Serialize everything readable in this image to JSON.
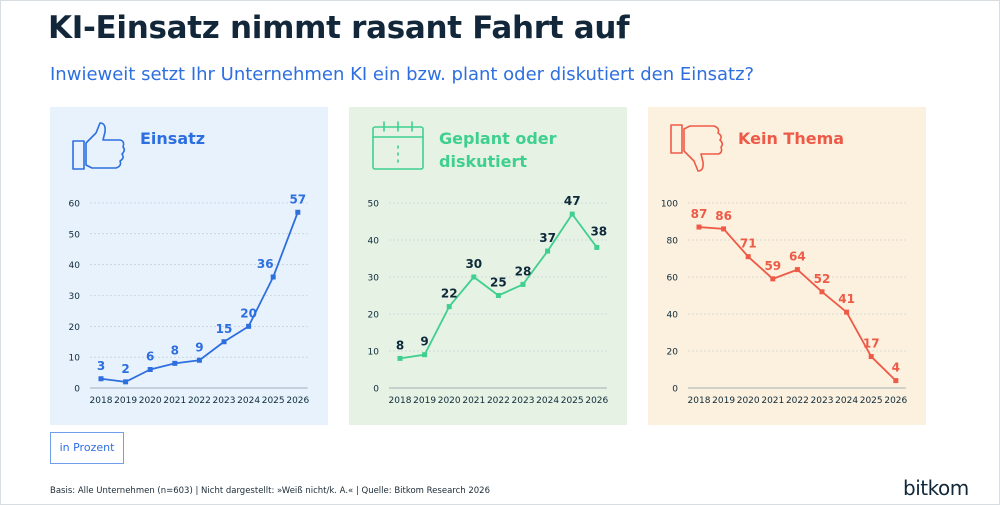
{
  "title": "KI-Einsatz nimmt rasant Fahrt auf",
  "subtitle": "Inwieweit setzt Ihr Unternehmen KI ein bzw. plant oder diskutiert den Einsatz?",
  "unit_label": "in Prozent",
  "footer": "Basis: Alle Unternehmen (n=603) | Nicht dargestellt: »Weiß nicht/k. A.« | Quelle: Bitkom Research 2026",
  "brand": "bitkom",
  "colors": {
    "blue": "#2e6fe0",
    "green": "#3fcf8f",
    "red": "#ee5a48",
    "axis": "#8a98a6",
    "label": "#0e2a3a"
  },
  "chart_data": [
    {
      "type": "line",
      "title_lines": [
        "Einsatz"
      ],
      "icon": "thumbs-up-icon",
      "x": [
        "2018",
        "2019",
        "2020",
        "2021",
        "2022",
        "2023",
        "2024",
        "2025",
        "2026"
      ],
      "values": [
        3,
        2,
        6,
        8,
        9,
        15,
        20,
        36,
        57
      ],
      "value_labels": [
        "3",
        "2",
        "6",
        "8",
        "9",
        "15",
        "20",
        "36",
        "57"
      ],
      "yticks": [
        0,
        10,
        20,
        30,
        40,
        50,
        60
      ],
      "ytick_labels": [
        "0",
        "10",
        "20",
        "30",
        "40",
        "50",
        "60"
      ],
      "ylim": [
        0,
        60
      ],
      "color": "#2e6fe0",
      "label_color": "#2e6fe0"
    },
    {
      "type": "line",
      "title_lines": [
        "Geplant oder",
        "diskutiert"
      ],
      "icon": "calendar-icon",
      "x": [
        "2018",
        "2019",
        "2020",
        "2021",
        "2022",
        "2023",
        "2024",
        "2025",
        "2026"
      ],
      "values": [
        8,
        9,
        22,
        30,
        25,
        28,
        37,
        47,
        38
      ],
      "value_labels": [
        "8",
        "9",
        "22",
        "30",
        "25",
        "28",
        "37",
        "47",
        "38"
      ],
      "yticks": [
        0,
        10,
        20,
        30,
        40,
        50
      ],
      "ytick_labels": [
        "0",
        "10",
        "20",
        "30",
        "40",
        "50"
      ],
      "ylim": [
        0,
        50
      ],
      "color": "#3fcf8f",
      "label_color": "#0e2a3a"
    },
    {
      "type": "line",
      "title_lines": [
        "Kein Thema"
      ],
      "icon": "thumbs-down-icon",
      "x": [
        "2018",
        "2019",
        "2020",
        "2021",
        "2022",
        "2023",
        "2024",
        "2025",
        "2026"
      ],
      "values": [
        87,
        86,
        71,
        59,
        64,
        52,
        41,
        17,
        4
      ],
      "value_labels": [
        "87",
        "86",
        "71",
        "59",
        "64",
        "52",
        "41",
        "17",
        "4"
      ],
      "yticks": [
        0,
        20,
        40,
        60,
        80,
        100
      ],
      "ytick_labels": [
        "0",
        "20",
        "40",
        "60",
        "80",
        "100"
      ],
      "ylim": [
        0,
        100
      ],
      "color": "#ee5a48",
      "label_color": "#ee5a48"
    }
  ]
}
